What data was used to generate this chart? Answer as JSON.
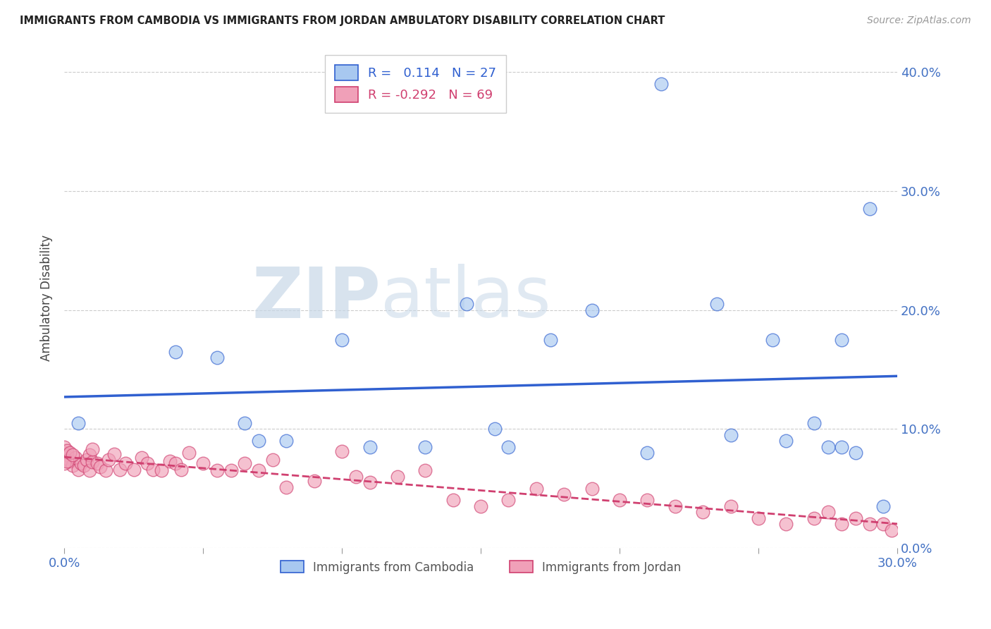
{
  "title": "IMMIGRANTS FROM CAMBODIA VS IMMIGRANTS FROM JORDAN AMBULATORY DISABILITY CORRELATION CHART",
  "source": "Source: ZipAtlas.com",
  "ylabel": "Ambulatory Disability",
  "xlim": [
    0.0,
    0.3
  ],
  "ylim": [
    0.0,
    0.42
  ],
  "ytick_vals": [
    0.0,
    0.1,
    0.2,
    0.3,
    0.4
  ],
  "xtick_vals": [
    0.0,
    0.05,
    0.1,
    0.15,
    0.2,
    0.25,
    0.3
  ],
  "legend_R_cambodia": "0.114",
  "legend_N_cambodia": "27",
  "legend_R_jordan": "-0.292",
  "legend_N_jordan": "69",
  "color_cambodia": "#a8c8f0",
  "color_jordan": "#f0a0b8",
  "trendline_cambodia_color": "#3060d0",
  "trendline_jordan_color": "#d04070",
  "cambodia_x": [
    0.005,
    0.04,
    0.055,
    0.065,
    0.07,
    0.08,
    0.1,
    0.11,
    0.13,
    0.145,
    0.155,
    0.16,
    0.175,
    0.19,
    0.21,
    0.215,
    0.235,
    0.255,
    0.27,
    0.275,
    0.28,
    0.285,
    0.29,
    0.295,
    0.24,
    0.26,
    0.28
  ],
  "cambodia_y": [
    0.105,
    0.165,
    0.16,
    0.105,
    0.09,
    0.09,
    0.175,
    0.085,
    0.085,
    0.205,
    0.1,
    0.085,
    0.175,
    0.2,
    0.08,
    0.39,
    0.205,
    0.175,
    0.105,
    0.085,
    0.175,
    0.08,
    0.285,
    0.035,
    0.095,
    0.09,
    0.085
  ],
  "jordan_x": [
    0.0,
    0.0,
    0.0,
    0.001,
    0.001,
    0.002,
    0.003,
    0.004,
    0.005,
    0.006,
    0.007,
    0.008,
    0.009,
    0.009,
    0.01,
    0.01,
    0.012,
    0.013,
    0.015,
    0.016,
    0.018,
    0.02,
    0.022,
    0.025,
    0.028,
    0.03,
    0.032,
    0.035,
    0.038,
    0.04,
    0.042,
    0.045,
    0.05,
    0.055,
    0.06,
    0.065,
    0.07,
    0.075,
    0.08,
    0.09,
    0.1,
    0.105,
    0.11,
    0.12,
    0.13,
    0.14,
    0.15,
    0.16,
    0.17,
    0.18,
    0.19,
    0.2,
    0.21,
    0.22,
    0.23,
    0.24,
    0.25,
    0.26,
    0.27,
    0.275,
    0.28,
    0.285,
    0.29,
    0.295,
    0.298,
    0.0,
    0.001,
    0.002,
    0.003
  ],
  "jordan_y": [
    0.075,
    0.08,
    0.085,
    0.078,
    0.082,
    0.073,
    0.069,
    0.076,
    0.066,
    0.071,
    0.069,
    0.074,
    0.065,
    0.078,
    0.072,
    0.083,
    0.071,
    0.068,
    0.065,
    0.074,
    0.079,
    0.066,
    0.071,
    0.066,
    0.076,
    0.071,
    0.066,
    0.065,
    0.073,
    0.071,
    0.066,
    0.08,
    0.071,
    0.065,
    0.065,
    0.071,
    0.065,
    0.074,
    0.051,
    0.056,
    0.081,
    0.06,
    0.055,
    0.06,
    0.065,
    0.04,
    0.035,
    0.04,
    0.05,
    0.045,
    0.05,
    0.04,
    0.04,
    0.035,
    0.03,
    0.035,
    0.025,
    0.02,
    0.025,
    0.03,
    0.02,
    0.025,
    0.02,
    0.02,
    0.015,
    0.071,
    0.073,
    0.08,
    0.078
  ]
}
